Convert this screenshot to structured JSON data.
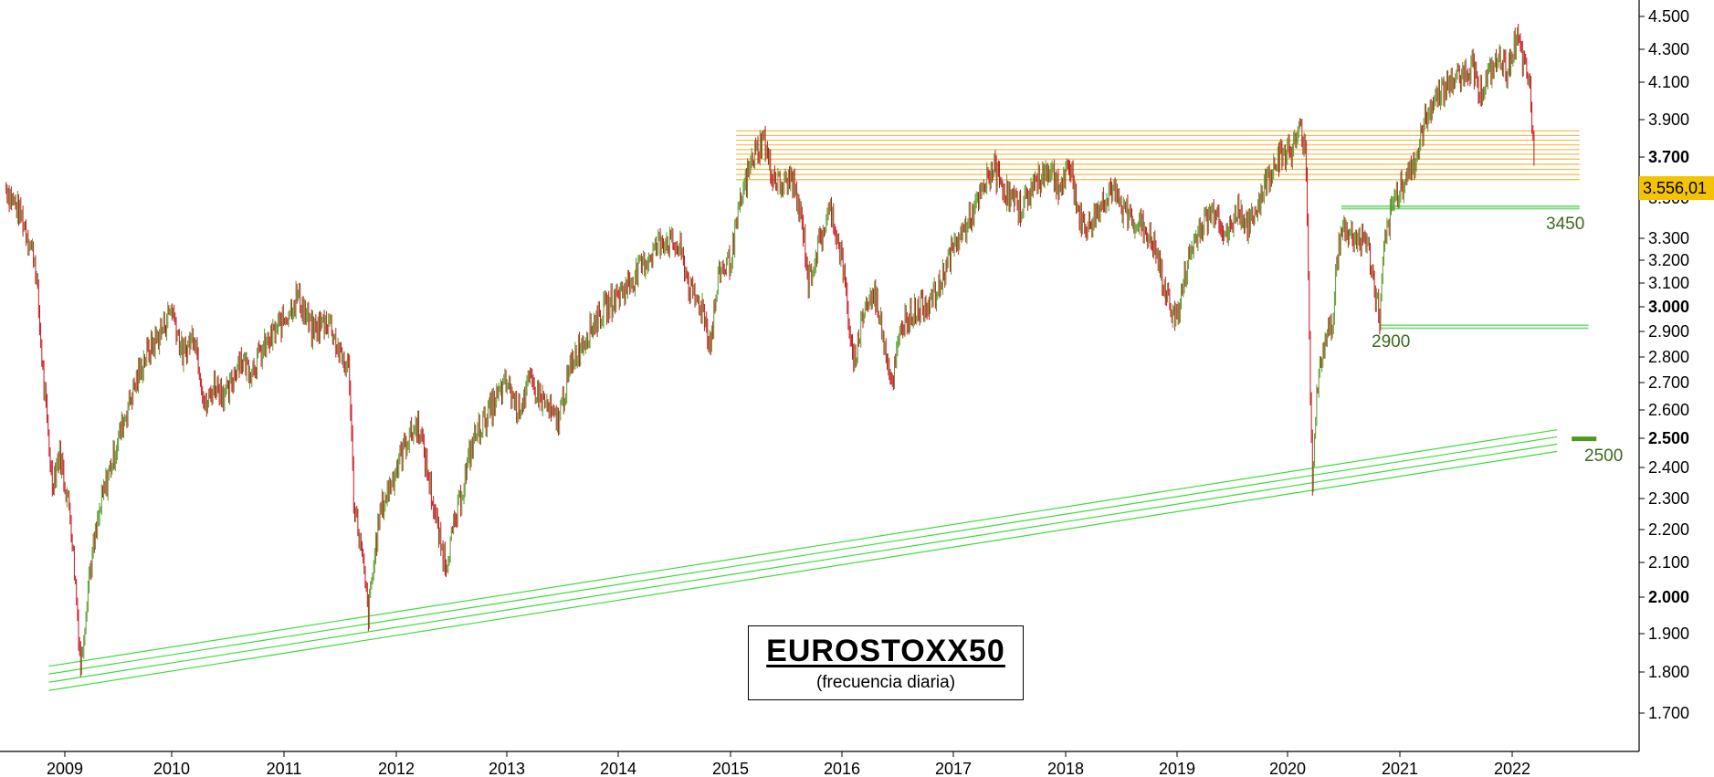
{
  "chart_data": {
    "type": "bar",
    "style": "ohlc-daily",
    "title": "EUROSTOXX50",
    "subtitle": "(frecuencia diaria)",
    "ylim": [
      1600,
      4550
    ],
    "y_ticks": [
      {
        "label": "4.500",
        "value": 4500,
        "bold": false
      },
      {
        "label": "4.300",
        "value": 4300,
        "bold": false
      },
      {
        "label": "4.100",
        "value": 4100,
        "bold": false
      },
      {
        "label": "3.900",
        "value": 3900,
        "bold": false
      },
      {
        "label": "3.700",
        "value": 3700,
        "bold": true
      },
      {
        "label": "3.500",
        "value": 3500,
        "bold": false
      },
      {
        "label": "3.300",
        "value": 3300,
        "bold": false
      },
      {
        "label": "3.200",
        "value": 3200,
        "bold": false
      },
      {
        "label": "3.100",
        "value": 3100,
        "bold": false
      },
      {
        "label": "3.000",
        "value": 3000,
        "bold": true
      },
      {
        "label": "2.900",
        "value": 2900,
        "bold": false
      },
      {
        "label": "2.800",
        "value": 2800,
        "bold": false
      },
      {
        "label": "2.700",
        "value": 2700,
        "bold": false
      },
      {
        "label": "2.600",
        "value": 2600,
        "bold": false
      },
      {
        "label": "2.500",
        "value": 2500,
        "bold": true
      },
      {
        "label": "2.400",
        "value": 2400,
        "bold": false
      },
      {
        "label": "2.300",
        "value": 2300,
        "bold": false
      },
      {
        "label": "2.200",
        "value": 2200,
        "bold": false
      },
      {
        "label": "2.100",
        "value": 2100,
        "bold": false
      },
      {
        "label": "2.000",
        "value": 2000,
        "bold": true
      },
      {
        "label": "1.900",
        "value": 1900,
        "bold": false
      },
      {
        "label": "1.800",
        "value": 1800,
        "bold": false
      },
      {
        "label": "1.700",
        "value": 1700,
        "bold": false
      }
    ],
    "x_ticks": [
      {
        "label": "2009",
        "value": 2009.0
      },
      {
        "label": "2010",
        "value": 2010.0
      },
      {
        "label": "2011",
        "value": 2011.0
      },
      {
        "label": "2012",
        "value": 2012.0
      },
      {
        "label": "2013",
        "value": 2013.0
      },
      {
        "label": "2014",
        "value": 2014.0
      },
      {
        "label": "2015",
        "value": 2015.0
      },
      {
        "label": "2016",
        "value": 2016.0
      },
      {
        "label": "2017",
        "value": 2017.0
      },
      {
        "label": "2018",
        "value": 2018.0
      },
      {
        "label": "2019",
        "value": 2019.0
      },
      {
        "label": "2020",
        "value": 2020.0
      },
      {
        "label": "2021",
        "value": 2021.0
      },
      {
        "label": "2022",
        "value": 2022.0
      }
    ],
    "xlim": [
      2008.45,
      2022.75
    ],
    "colors": {
      "up": "#5a9a2a",
      "down": "#c8141e",
      "resistance": "#f2b84a",
      "support": "#7fd97f",
      "trend": "#3ddc3d",
      "badge": "#f5c400",
      "annotation": "#3a6a1f",
      "thick_support": "#4e9a1e"
    },
    "price_path": [
      [
        2008.45,
        3550
      ],
      [
        2008.6,
        3400
      ],
      [
        2008.72,
        3200
      ],
      [
        2008.8,
        2700
      ],
      [
        2008.88,
        2350
      ],
      [
        2008.95,
        2450
      ],
      [
        2009.05,
        2250
      ],
      [
        2009.15,
        1810
      ],
      [
        2009.22,
        2050
      ],
      [
        2009.35,
        2300
      ],
      [
        2009.5,
        2500
      ],
      [
        2009.62,
        2650
      ],
      [
        2009.75,
        2800
      ],
      [
        2009.9,
        2900
      ],
      [
        2010.0,
        3000
      ],
      [
        2010.1,
        2800
      ],
      [
        2010.2,
        2900
      ],
      [
        2010.3,
        2600
      ],
      [
        2010.38,
        2700
      ],
      [
        2010.5,
        2650
      ],
      [
        2010.6,
        2800
      ],
      [
        2010.7,
        2750
      ],
      [
        2010.85,
        2850
      ],
      [
        2011.0,
        2950
      ],
      [
        2011.12,
        3050
      ],
      [
        2011.25,
        2900
      ],
      [
        2011.4,
        2950
      ],
      [
        2011.5,
        2800
      ],
      [
        2011.58,
        2750
      ],
      [
        2011.62,
        2300
      ],
      [
        2011.7,
        2100
      ],
      [
        2011.75,
        1950
      ],
      [
        2011.85,
        2250
      ],
      [
        2012.0,
        2400
      ],
      [
        2012.1,
        2500
      ],
      [
        2012.2,
        2550
      ],
      [
        2012.3,
        2350
      ],
      [
        2012.4,
        2150
      ],
      [
        2012.45,
        2100
      ],
      [
        2012.55,
        2250
      ],
      [
        2012.7,
        2500
      ],
      [
        2012.85,
        2600
      ],
      [
        2013.0,
        2700
      ],
      [
        2013.1,
        2600
      ],
      [
        2013.2,
        2700
      ],
      [
        2013.3,
        2650
      ],
      [
        2013.45,
        2550
      ],
      [
        2013.6,
        2800
      ],
      [
        2013.8,
        2950
      ],
      [
        2014.0,
        3050
      ],
      [
        2014.1,
        3100
      ],
      [
        2014.25,
        3200
      ],
      [
        2014.4,
        3300
      ],
      [
        2014.55,
        3250
      ],
      [
        2014.65,
        3050
      ],
      [
        2014.75,
        3000
      ],
      [
        2014.82,
        2850
      ],
      [
        2014.9,
        3150
      ],
      [
        2015.0,
        3200
      ],
      [
        2015.1,
        3500
      ],
      [
        2015.2,
        3700
      ],
      [
        2015.3,
        3800
      ],
      [
        2015.35,
        3650
      ],
      [
        2015.45,
        3550
      ],
      [
        2015.55,
        3600
      ],
      [
        2015.65,
        3350
      ],
      [
        2015.7,
        3100
      ],
      [
        2015.75,
        3200
      ],
      [
        2015.9,
        3450
      ],
      [
        2016.0,
        3200
      ],
      [
        2016.05,
        3000
      ],
      [
        2016.1,
        2750
      ],
      [
        2016.2,
        3000
      ],
      [
        2016.3,
        3050
      ],
      [
        2016.45,
        2700
      ],
      [
        2016.55,
        2950
      ],
      [
        2016.7,
        3000
      ],
      [
        2016.85,
        3050
      ],
      [
        2016.95,
        3200
      ],
      [
        2017.05,
        3300
      ],
      [
        2017.2,
        3450
      ],
      [
        2017.35,
        3650
      ],
      [
        2017.5,
        3500
      ],
      [
        2017.6,
        3450
      ],
      [
        2017.7,
        3550
      ],
      [
        2017.85,
        3650
      ],
      [
        2017.95,
        3550
      ],
      [
        2018.05,
        3650
      ],
      [
        2018.12,
        3400
      ],
      [
        2018.2,
        3350
      ],
      [
        2018.3,
        3450
      ],
      [
        2018.4,
        3550
      ],
      [
        2018.5,
        3450
      ],
      [
        2018.6,
        3400
      ],
      [
        2018.7,
        3350
      ],
      [
        2018.8,
        3250
      ],
      [
        2018.9,
        3050
      ],
      [
        2019.0,
        2950
      ],
      [
        2019.1,
        3200
      ],
      [
        2019.2,
        3350
      ],
      [
        2019.35,
        3450
      ],
      [
        2019.45,
        3300
      ],
      [
        2019.55,
        3450
      ],
      [
        2019.65,
        3350
      ],
      [
        2019.75,
        3500
      ],
      [
        2019.9,
        3700
      ],
      [
        2020.05,
        3750
      ],
      [
        2020.12,
        3850
      ],
      [
        2020.16,
        3750
      ],
      [
        2020.18,
        3300
      ],
      [
        2020.2,
        2700
      ],
      [
        2020.22,
        2350
      ],
      [
        2020.25,
        2600
      ],
      [
        2020.3,
        2800
      ],
      [
        2020.4,
        2950
      ],
      [
        2020.45,
        3250
      ],
      [
        2020.5,
        3350
      ],
      [
        2020.6,
        3300
      ],
      [
        2020.7,
        3300
      ],
      [
        2020.75,
        3150
      ],
      [
        2020.82,
        2950
      ],
      [
        2020.86,
        3250
      ],
      [
        2020.95,
        3500
      ],
      [
        2021.05,
        3600
      ],
      [
        2021.15,
        3700
      ],
      [
        2021.25,
        3950
      ],
      [
        2021.35,
        4050
      ],
      [
        2021.45,
        4100
      ],
      [
        2021.55,
        4150
      ],
      [
        2021.65,
        4200
      ],
      [
        2021.72,
        4050
      ],
      [
        2021.8,
        4150
      ],
      [
        2021.9,
        4250
      ],
      [
        2021.95,
        4150
      ],
      [
        2022.0,
        4300
      ],
      [
        2022.05,
        4350
      ],
      [
        2022.1,
        4200
      ],
      [
        2022.15,
        4100
      ],
      [
        2022.18,
        3850
      ],
      [
        2022.2,
        3600
      ]
    ],
    "resistance_lines": {
      "x_start": 2015.05,
      "x_end": 2022.6,
      "values": [
        3840,
        3815,
        3790,
        3765,
        3740,
        3715,
        3690,
        3665,
        3640,
        3615,
        3590
      ]
    },
    "support_lines": [
      {
        "label": "3450",
        "x_start": 2020.48,
        "x_end": 2022.6,
        "values": [
          3460,
          3448
        ]
      },
      {
        "label": "2900",
        "x_start": 2020.82,
        "x_end": 2022.68,
        "values": [
          2925,
          2913
        ]
      }
    ],
    "thick_support": {
      "label": "2500",
      "x_start": 2022.53,
      "x_end": 2022.75,
      "value": 2498
    },
    "trend_lines": [
      {
        "p1": [
          2008.85,
          1815
        ],
        "p2": [
          2022.4,
          2530
        ]
      },
      {
        "p1": [
          2008.85,
          1795
        ],
        "p2": [
          2022.4,
          2505
        ]
      },
      {
        "p1": [
          2008.85,
          1775
        ],
        "p2": [
          2022.4,
          2480
        ]
      },
      {
        "p1": [
          2008.85,
          1755
        ],
        "p2": [
          2022.4,
          2455
        ]
      }
    ],
    "last_price": "3.556,01",
    "last_value": 3556
  }
}
